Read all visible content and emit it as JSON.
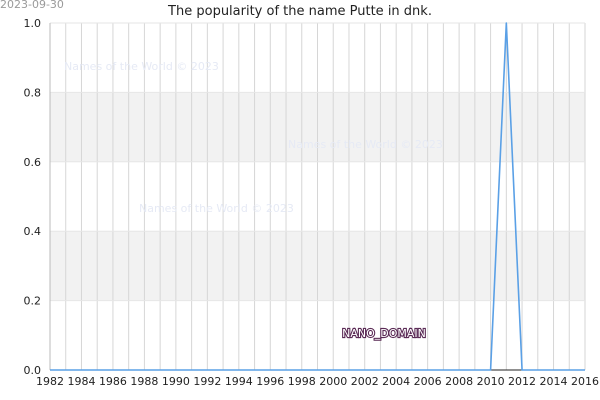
{
  "stamp_date": "2023-09-30",
  "chart_data": {
    "type": "line",
    "title": "The popularity of the name Putte in dnk.",
    "xlabel": "",
    "ylabel": "",
    "xlim": [
      1982,
      2016
    ],
    "ylim": [
      0.0,
      1.0
    ],
    "x_ticks": [
      "1982",
      "1984",
      "1986",
      "1988",
      "1990",
      "1992",
      "1994",
      "1996",
      "1998",
      "2000",
      "2002",
      "2004",
      "2006",
      "2008",
      "2010",
      "2012",
      "2014",
      "2016"
    ],
    "y_ticks": [
      "0.0",
      "0.2",
      "0.4",
      "0.6",
      "0.8",
      "1.0"
    ],
    "grid": true,
    "series": [
      {
        "color": "#5aa0e6",
        "x": [
          1982,
          1983,
          1984,
          1985,
          1986,
          1987,
          1988,
          1989,
          1990,
          1991,
          1992,
          1993,
          1994,
          1995,
          1996,
          1997,
          1998,
          1999,
          2000,
          2001,
          2002,
          2003,
          2004,
          2005,
          2006,
          2007,
          2008,
          2009,
          2010,
          2011,
          2012,
          2013,
          2014,
          2015,
          2016
        ],
        "values": [
          0,
          0,
          0,
          0,
          0,
          0,
          0,
          0,
          0,
          0,
          0,
          0,
          0,
          0,
          0,
          0,
          0,
          0,
          0,
          0,
          0,
          0,
          0,
          0,
          0,
          0,
          0,
          0,
          0,
          1,
          0,
          0,
          0,
          0,
          0
        ]
      }
    ]
  },
  "watermarks": [
    "Names of the World © 2023",
    "Names of the World © 2023",
    "Names of the World © 2023"
  ],
  "domain_label": "NANO_DOMAIN"
}
